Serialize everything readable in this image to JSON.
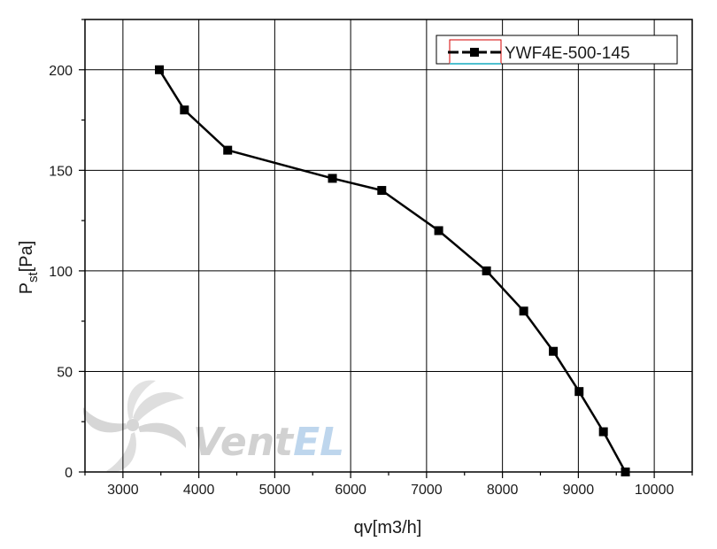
{
  "chart_data": {
    "type": "line",
    "title": "",
    "xlabel": "qv[m3/h]",
    "ylabel": {
      "main": "P",
      "sub": "st",
      "unit": "[Pa]"
    },
    "xlim": [
      2500,
      10500
    ],
    "ylim": [
      0,
      225
    ],
    "grid": true,
    "x_ticks": [
      3000,
      4000,
      5000,
      6000,
      7000,
      8000,
      9000,
      10000
    ],
    "y_ticks": [
      0,
      50,
      100,
      150,
      200
    ],
    "legend_position": "top-right",
    "series": [
      {
        "name": "YWF4E-500-145",
        "color": "#000000",
        "marker": "square",
        "x": [
          3480,
          3810,
          4380,
          5760,
          6410,
          7160,
          7790,
          8280,
          8670,
          9010,
          9330,
          9620
        ],
        "y": [
          200,
          180,
          160,
          146,
          140,
          120,
          100,
          80,
          60,
          40,
          20,
          0
        ]
      }
    ]
  },
  "watermark": {
    "text_dark": "Vent",
    "text_light": "EL",
    "colors": {
      "dark": "#c9c9c9",
      "light": "#b3d0ea",
      "icon": "#d6d6d6"
    },
    "icon": "fan-logo-icon"
  },
  "legend_colors": {
    "frame": "#d40000",
    "underline": "#4fc0cf"
  }
}
